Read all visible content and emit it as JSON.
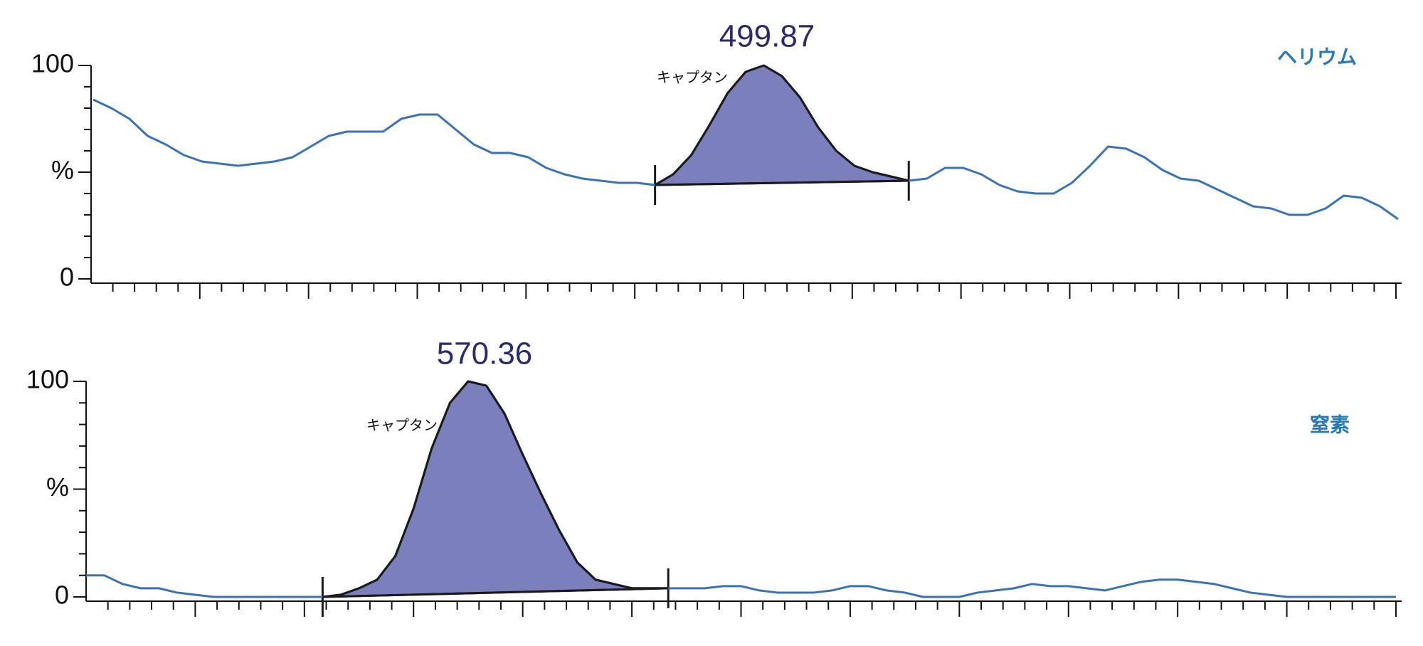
{
  "chart_data": [
    {
      "type": "line",
      "series": [
        {
          "name": "ヘリウム",
          "color": "#3b72b4",
          "values": [
            84,
            80,
            75,
            67,
            63,
            58,
            55,
            54,
            53,
            54,
            55,
            57,
            62,
            67,
            69,
            69,
            69,
            75,
            77,
            77,
            70,
            63,
            59,
            59,
            57,
            52,
            49,
            47,
            46,
            45,
            45,
            44,
            49,
            58,
            72,
            87,
            97,
            100,
            95,
            85,
            71,
            60,
            53,
            50,
            48,
            46,
            47,
            52,
            52,
            49,
            44,
            41,
            40,
            40,
            45,
            53,
            62,
            61,
            57,
            51,
            47,
            46,
            42,
            38,
            34,
            33,
            30,
            30,
            33,
            39,
            38,
            34,
            28
          ]
        }
      ],
      "peak": {
        "area": 499.87,
        "label": "キャプタン",
        "start": 31,
        "end": 45,
        "color": "#7b7fbb"
      },
      "ylim": [
        0,
        100
      ],
      "yticks": [
        0,
        {
          "value": 50,
          "label": "%"
        },
        100
      ]
    },
    {
      "type": "line",
      "series": [
        {
          "name": "窒素",
          "color": "#3b72b4",
          "values": [
            10,
            10,
            6,
            4,
            4,
            2,
            1,
            0,
            0,
            0,
            0,
            0,
            0,
            0,
            1,
            4,
            8,
            19,
            41,
            69,
            90,
            100,
            98,
            85,
            66,
            48,
            31,
            16,
            8,
            6,
            4,
            4,
            4,
            4,
            4,
            5,
            5,
            3,
            2,
            2,
            2,
            3,
            5,
            5,
            3,
            2,
            0,
            0,
            0,
            2,
            3,
            4,
            6,
            5,
            5,
            4,
            3,
            5,
            7,
            8,
            8,
            7,
            6,
            4,
            2,
            1,
            0,
            0,
            0,
            0,
            0,
            0,
            0
          ]
        }
      ],
      "peak": {
        "area": 570.36,
        "label": "キャプタン",
        "start": 13,
        "end": 32,
        "color": "#7b7fbb"
      },
      "ylim": [
        0,
        100
      ],
      "yticks": [
        0,
        {
          "value": 50,
          "label": "%"
        },
        100
      ]
    }
  ]
}
